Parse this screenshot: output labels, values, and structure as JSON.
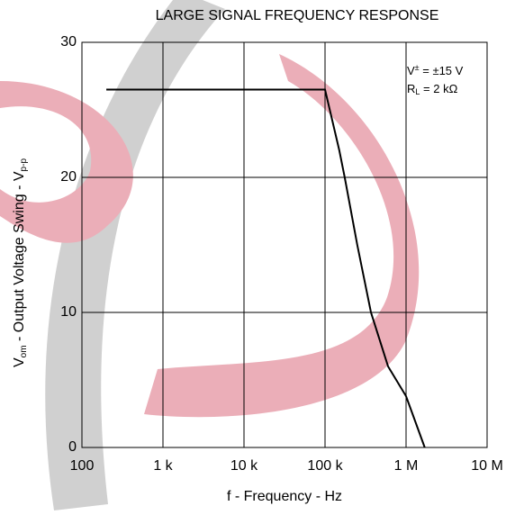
{
  "chart_data": {
    "type": "line",
    "title": "LARGE SIGNAL FREQUENCY RESPONSE",
    "x_label": "f - Frequency - Hz",
    "y_label": [
      "V",
      "om",
      " - Output Voltage Swing - V",
      "p-p"
    ],
    "annotations": [
      [
        "V",
        "±",
        " = ±15 V"
      ],
      [
        "R",
        "L",
        " = 2 kΩ"
      ]
    ],
    "x_scale": "log",
    "xlim": [
      100,
      10000000
    ],
    "ylim": [
      0,
      30
    ],
    "xticks": [
      100,
      {
        "value": 1000,
        "label": "1 k"
      },
      {
        "value": 10000,
        "label": "10 k"
      },
      {
        "value": 100000,
        "label": "100 k"
      },
      {
        "value": 1000000,
        "label": "1 M"
      },
      {
        "value": 10000000,
        "label": "10 M"
      }
    ],
    "yticks": [
      0,
      10,
      20,
      30
    ],
    "grid": true,
    "series": [
      {
        "color": "#000000",
        "x": [
          200,
          100000,
          150000,
          175000,
          250000,
          369000,
          600000,
          1000000,
          1700000
        ],
        "values": [
          26.5,
          26.5,
          22,
          20,
          15,
          10,
          6,
          3.8,
          0
        ]
      }
    ]
  }
}
